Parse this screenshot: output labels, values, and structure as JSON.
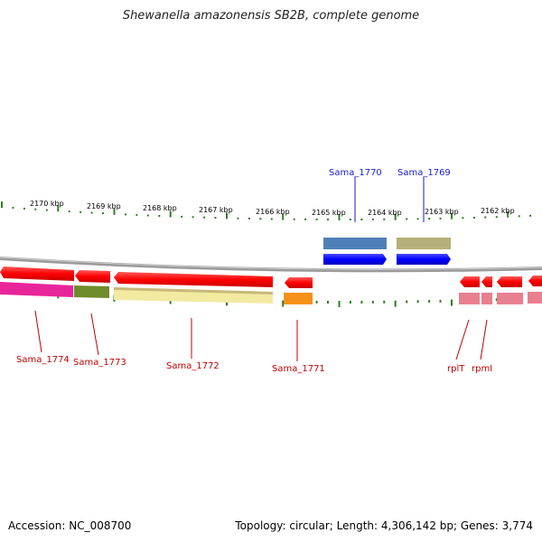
{
  "title": "Shewanella amazonensis SB2B, complete genome",
  "footer": {
    "accession": "Accession: NC_008700",
    "summary": "Topology: circular; Length: 4,306,142 bp; Genes: 3,774"
  },
  "colors": {
    "backbone": "#8a8a8a",
    "tick": "#2e7d20",
    "red_label": "#c00000",
    "blue_label": "#1a1ad0"
  },
  "kbp_labels": [
    "2170 kbp",
    "2169 kbp",
    "2168 kbp",
    "2167 kbp",
    "2166 kbp",
    "2165 kbp",
    "2164 kbp",
    "2163 kbp",
    "2162 kbp"
  ],
  "gene_labels": {
    "sama_1770": "Sama_1770",
    "sama_1769": "Sama_1769",
    "sama_1774": "Sama_1774",
    "sama_1773": "Sama_1773",
    "sama_1772": "Sama_1772",
    "sama_1771": "Sama_1771",
    "rplT": "rplT",
    "rpmI": "rpmI"
  }
}
